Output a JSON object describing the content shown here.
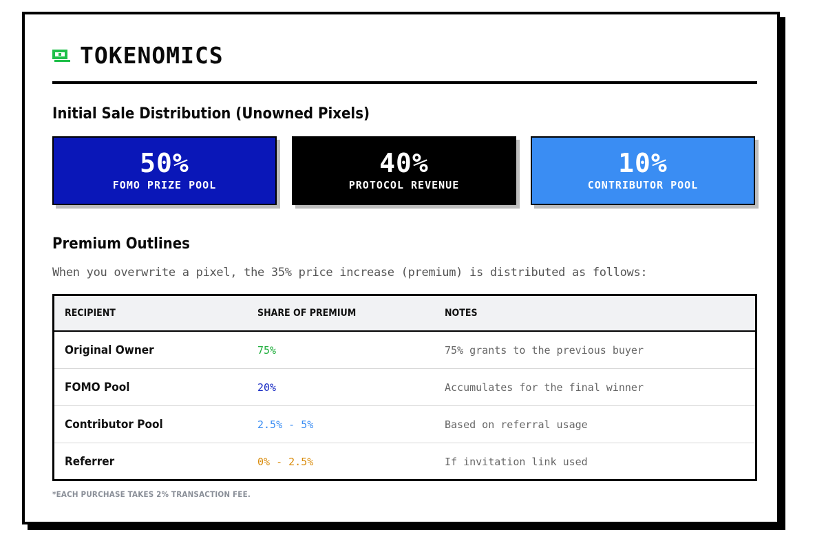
{
  "header": {
    "title": "TOKENOMICS",
    "icon": "money-icon",
    "icon_color": "#1fbf4a"
  },
  "sale": {
    "heading": "Initial Sale Distribution (Unowned Pixels)",
    "boxes": [
      {
        "percent": "50%",
        "label": "FOMO PRIZE POOL",
        "color": "#0a17b8"
      },
      {
        "percent": "40%",
        "label": "PROTOCOL REVENUE",
        "color": "#000000"
      },
      {
        "percent": "10%",
        "label": "CONTRIBUTOR POOL",
        "color": "#3a8df3"
      }
    ]
  },
  "premium": {
    "heading": "Premium Outlines",
    "description": "When you overwrite a pixel, the 35% price increase (premium) is distributed as follows:",
    "columns": [
      "RECIPIENT",
      "SHARE OF PREMIUM",
      "NOTES"
    ],
    "rows": [
      {
        "recipient": "Original Owner",
        "share": "75%",
        "share_color": "#1fae3c",
        "notes": "75% grants to the previous buyer"
      },
      {
        "recipient": "FOMO Pool",
        "share": "20%",
        "share_color": "#1a2dc4",
        "notes": "Accumulates for the final winner"
      },
      {
        "recipient": "Contributor Pool",
        "share": "2.5% - 5%",
        "share_color": "#3a8df3",
        "notes": "Based on referral usage"
      },
      {
        "recipient": "Referrer",
        "share": "0% - 2.5%",
        "share_color": "#d98b0a",
        "notes": "If invitation link used"
      }
    ]
  },
  "footnote": "*EACH PURCHASE TAKES 2% TRANSACTION FEE."
}
